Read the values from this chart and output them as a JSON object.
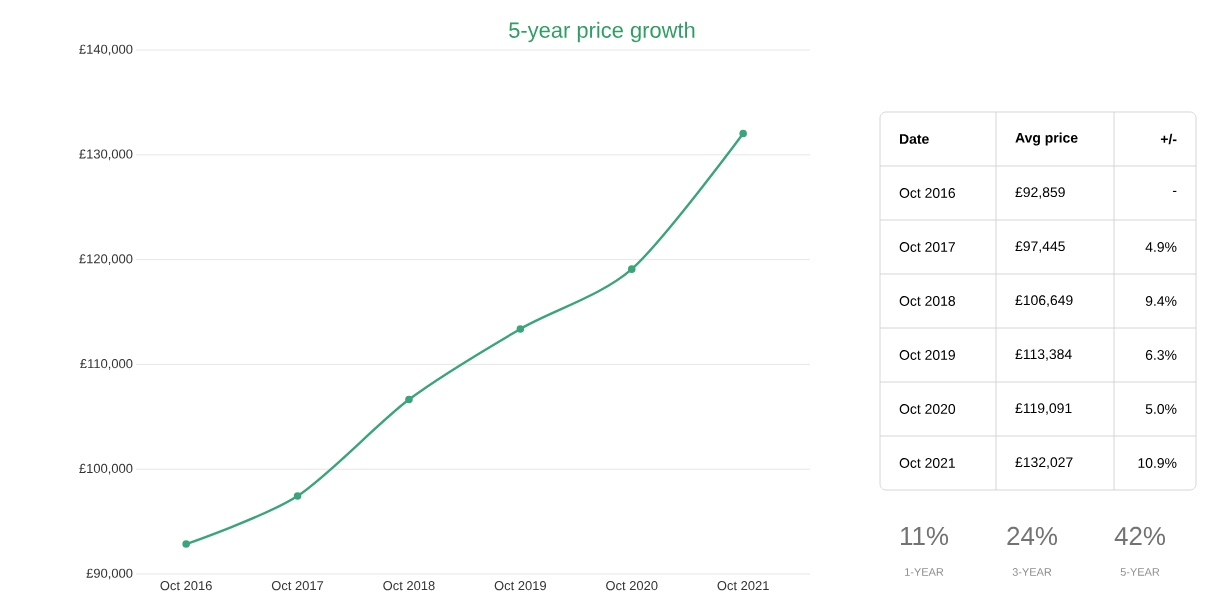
{
  "chart_data": {
    "type": "line",
    "title": "5-year price growth",
    "categories": [
      "Oct 2016",
      "Oct 2017",
      "Oct 2018",
      "Oct 2019",
      "Oct 2020",
      "Oct 2021"
    ],
    "values": [
      92859,
      97445,
      106649,
      113384,
      119091,
      132027
    ],
    "color": "#3aa57a",
    "marker": "circle",
    "grid": "y",
    "ylim": [
      90000,
      140000
    ],
    "yticks": [
      {
        "value": 90000,
        "label": "£90,000"
      },
      {
        "value": 100000,
        "label": "£100,000"
      },
      {
        "value": 110000,
        "label": "£110,000"
      },
      {
        "value": 120000,
        "label": "£120,000"
      },
      {
        "value": 130000,
        "label": "£130,000"
      },
      {
        "value": 140000,
        "label": "£140,000"
      }
    ],
    "annotations": [
      "Date",
      "Avg price",
      "+/-",
      "£92,859",
      "£97,445",
      "£106,649",
      "£113,384",
      "£119,091",
      "£132,027",
      "-",
      "4.9%",
      "9.4%",
      "6.3%",
      "5.0%",
      "10.9%",
      "11%",
      "1-YEAR",
      "24%",
      "3-YEAR",
      "42%",
      "5-YEAR"
    ]
  }
}
